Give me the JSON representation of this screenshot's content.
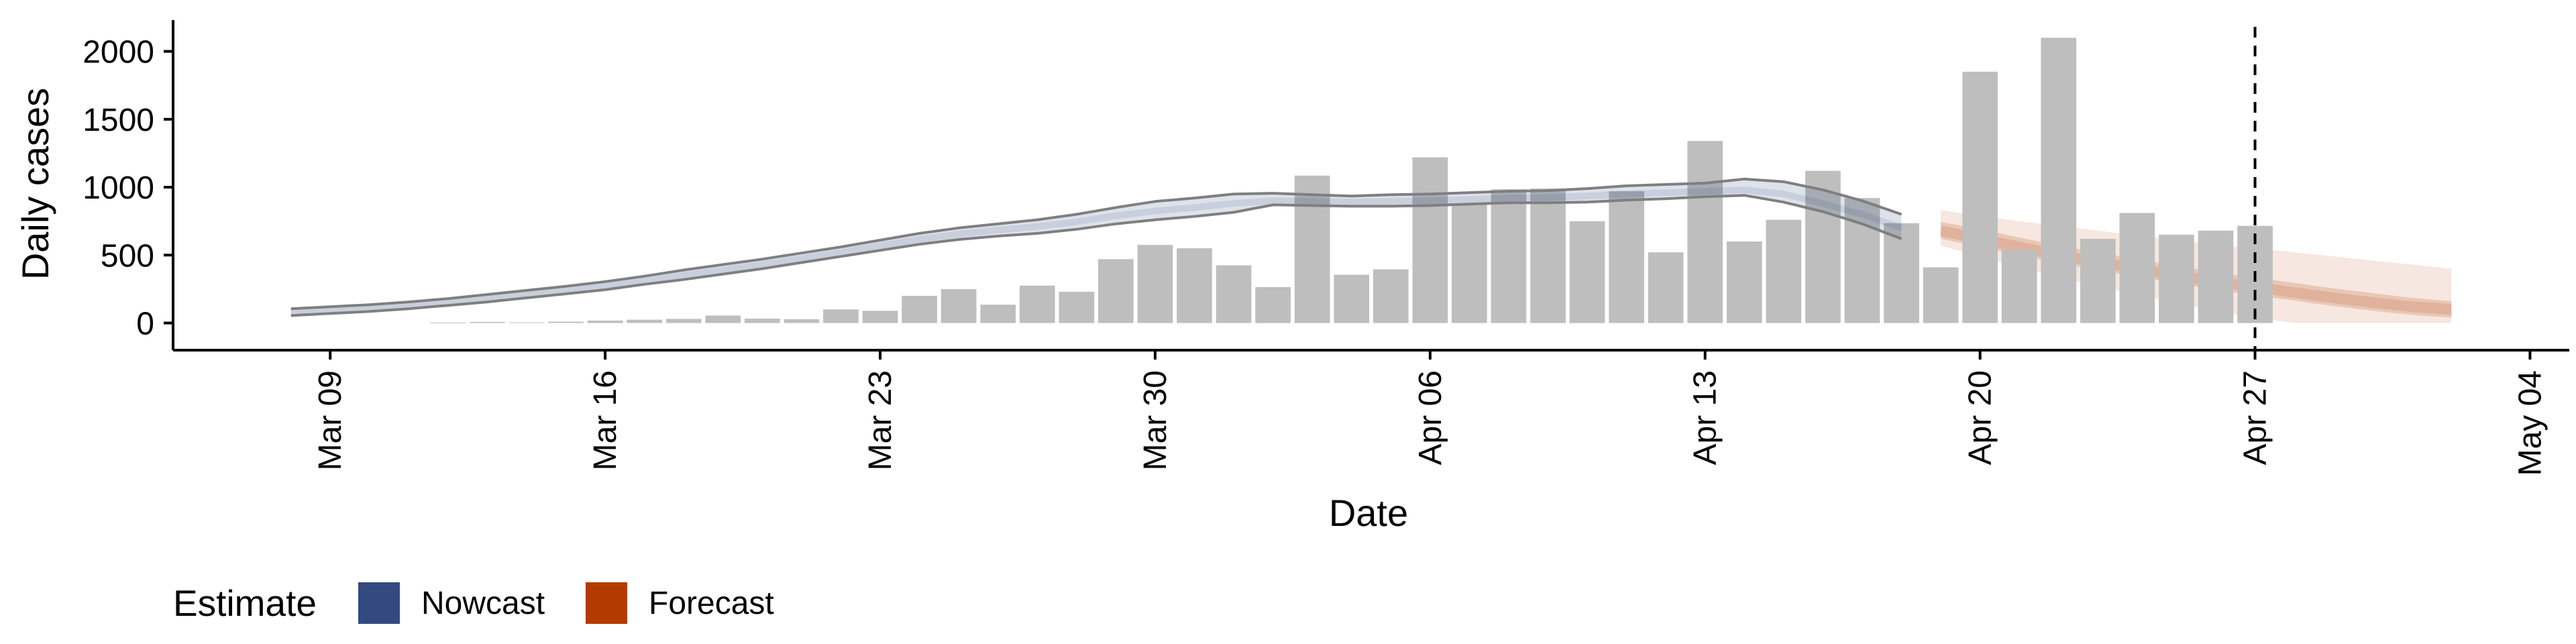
{
  "chart_data": {
    "type": "bar",
    "xlabel": "Date",
    "ylabel": "Daily cases",
    "xlim": [
      "2020-03-05",
      "2020-05-05"
    ],
    "ylim": [
      -200,
      2230
    ],
    "x_ticks": [
      "2020-03-09",
      "2020-03-16",
      "2020-03-23",
      "2020-03-30",
      "2020-04-06",
      "2020-04-13",
      "2020-04-20",
      "2020-04-27",
      "2020-05-04"
    ],
    "x_tick_labels": [
      "Mar 09",
      "Mar 16",
      "Mar 23",
      "Mar 30",
      "Apr 06",
      "Apr 13",
      "Apr 20",
      "Apr 27",
      "May 04"
    ],
    "y_ticks": [
      0,
      500,
      1000,
      1500,
      2000
    ],
    "y_tick_labels": [
      "0",
      "500",
      "1000",
      "1500",
      "2000"
    ],
    "reference_line": {
      "x": "2020-04-27",
      "style": "dashed",
      "color": "#000000"
    },
    "legend": {
      "title": "Estimate",
      "position": "bottom-left",
      "entries": [
        {
          "label": "Nowcast",
          "color": "#34497f"
        },
        {
          "label": "Forecast",
          "color": "#b33a00"
        }
      ]
    },
    "colors": {
      "bars": "#bebebe",
      "nowcast": "#34497f",
      "forecast": "#b33a00",
      "median_line": "#7f7f7f"
    },
    "bars": {
      "dates": [
        "2020-03-12",
        "2020-03-13",
        "2020-03-14",
        "2020-03-15",
        "2020-03-16",
        "2020-03-17",
        "2020-03-18",
        "2020-03-19",
        "2020-03-20",
        "2020-03-21",
        "2020-03-22",
        "2020-03-23",
        "2020-03-24",
        "2020-03-25",
        "2020-03-26",
        "2020-03-27",
        "2020-03-28",
        "2020-03-29",
        "2020-03-30",
        "2020-03-31",
        "2020-04-01",
        "2020-04-02",
        "2020-04-03",
        "2020-04-04",
        "2020-04-05",
        "2020-04-06",
        "2020-04-07",
        "2020-04-08",
        "2020-04-09",
        "2020-04-10",
        "2020-04-11",
        "2020-04-12",
        "2020-04-13",
        "2020-04-14",
        "2020-04-15",
        "2020-04-16",
        "2020-04-17",
        "2020-04-18",
        "2020-04-19",
        "2020-04-20",
        "2020-04-21",
        "2020-04-22",
        "2020-04-23",
        "2020-04-24",
        "2020-04-25",
        "2020-04-26",
        "2020-04-27"
      ],
      "values": [
        3,
        8,
        5,
        10,
        18,
        24,
        30,
        55,
        32,
        28,
        100,
        90,
        200,
        250,
        135,
        275,
        230,
        470,
        575,
        550,
        425,
        265,
        1085,
        355,
        395,
        1220,
        875,
        985,
        990,
        750,
        970,
        520,
        1340,
        600,
        760,
        1120,
        920,
        735,
        410,
        1850,
        540,
        2100,
        620,
        810,
        650,
        680,
        715
      ]
    },
    "nowcast": {
      "dates": [
        "2020-03-08",
        "2020-03-09",
        "2020-03-10",
        "2020-03-11",
        "2020-03-12",
        "2020-03-13",
        "2020-03-14",
        "2020-03-15",
        "2020-03-16",
        "2020-03-17",
        "2020-03-18",
        "2020-03-19",
        "2020-03-20",
        "2020-03-21",
        "2020-03-22",
        "2020-03-23",
        "2020-03-24",
        "2020-03-25",
        "2020-03-26",
        "2020-03-27",
        "2020-03-28",
        "2020-03-29",
        "2020-03-30",
        "2020-03-31",
        "2020-04-01",
        "2020-04-02",
        "2020-04-03",
        "2020-04-04",
        "2020-04-05",
        "2020-04-06",
        "2020-04-07",
        "2020-04-08",
        "2020-04-09",
        "2020-04-10",
        "2020-04-11",
        "2020-04-12",
        "2020-04-13",
        "2020-04-14",
        "2020-04-15",
        "2020-04-16",
        "2020-04-17",
        "2020-04-18"
      ],
      "median": [
        80,
        95,
        110,
        130,
        155,
        180,
        210,
        240,
        270,
        310,
        350,
        390,
        430,
        475,
        520,
        570,
        615,
        655,
        685,
        710,
        745,
        790,
        825,
        850,
        880,
        900,
        895,
        890,
        895,
        900,
        910,
        920,
        925,
        935,
        950,
        960,
        970,
        980,
        950,
        880,
        800,
        700
      ],
      "lower_90": [
        55,
        70,
        85,
        105,
        130,
        155,
        185,
        215,
        245,
        285,
        320,
        360,
        400,
        445,
        490,
        535,
        580,
        615,
        640,
        660,
        690,
        730,
        760,
        785,
        815,
        870,
        865,
        860,
        860,
        865,
        875,
        885,
        885,
        890,
        905,
        915,
        930,
        940,
        890,
        820,
        730,
        620
      ],
      "upper_90": [
        105,
        120,
        135,
        155,
        180,
        210,
        240,
        270,
        305,
        345,
        390,
        430,
        470,
        515,
        560,
        610,
        660,
        700,
        730,
        760,
        800,
        850,
        895,
        920,
        950,
        955,
        945,
        935,
        945,
        950,
        960,
        970,
        975,
        990,
        1010,
        1020,
        1030,
        1060,
        1040,
        980,
        900,
        800
      ]
    },
    "forecast": {
      "dates": [
        "2020-04-19",
        "2020-04-20",
        "2020-04-21",
        "2020-04-22",
        "2020-04-23",
        "2020-04-24",
        "2020-04-25",
        "2020-04-26",
        "2020-04-27",
        "2020-04-28",
        "2020-04-29",
        "2020-04-30",
        "2020-05-01",
        "2020-05-02"
      ],
      "median": [
        680,
        620,
        560,
        500,
        450,
        400,
        350,
        305,
        265,
        225,
        185,
        150,
        120,
        100
      ],
      "lower_50": [
        620,
        560,
        500,
        440,
        390,
        340,
        290,
        245,
        205,
        165,
        125,
        90,
        60,
        40
      ],
      "upper_50": [
        745,
        690,
        630,
        570,
        520,
        470,
        420,
        375,
        335,
        295,
        255,
        220,
        185,
        160
      ],
      "lower_90": [
        570,
        490,
        410,
        335,
        270,
        205,
        145,
        90,
        40,
        0,
        0,
        0,
        0,
        0
      ],
      "upper_90": [
        830,
        790,
        750,
        715,
        680,
        645,
        610,
        580,
        550,
        520,
        490,
        460,
        430,
        400
      ]
    }
  }
}
